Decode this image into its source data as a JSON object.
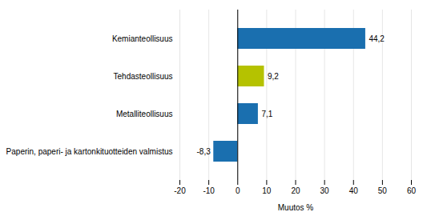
{
  "chart_data": {
    "type": "bar",
    "orientation": "horizontal",
    "categories": [
      "Kemianteollisuus",
      "Tehdasteollisuus",
      "Metalliteollisuus",
      "Paperin, paperi- ja kartonkituotteiden valmistus"
    ],
    "values": [
      44.2,
      9.2,
      7.1,
      -8.3
    ],
    "value_labels": [
      "44,2",
      "9,2",
      "7,1",
      "-8,3"
    ],
    "colors": [
      "#1a6faf",
      "#b5c200",
      "#1a6faf",
      "#1a6faf"
    ],
    "xlabel": "Muutos %",
    "xlim": [
      -20,
      60
    ],
    "xticks": [
      -20,
      -10,
      0,
      10,
      20,
      30,
      40,
      50,
      60
    ],
    "grid": true,
    "data_labels": true
  }
}
